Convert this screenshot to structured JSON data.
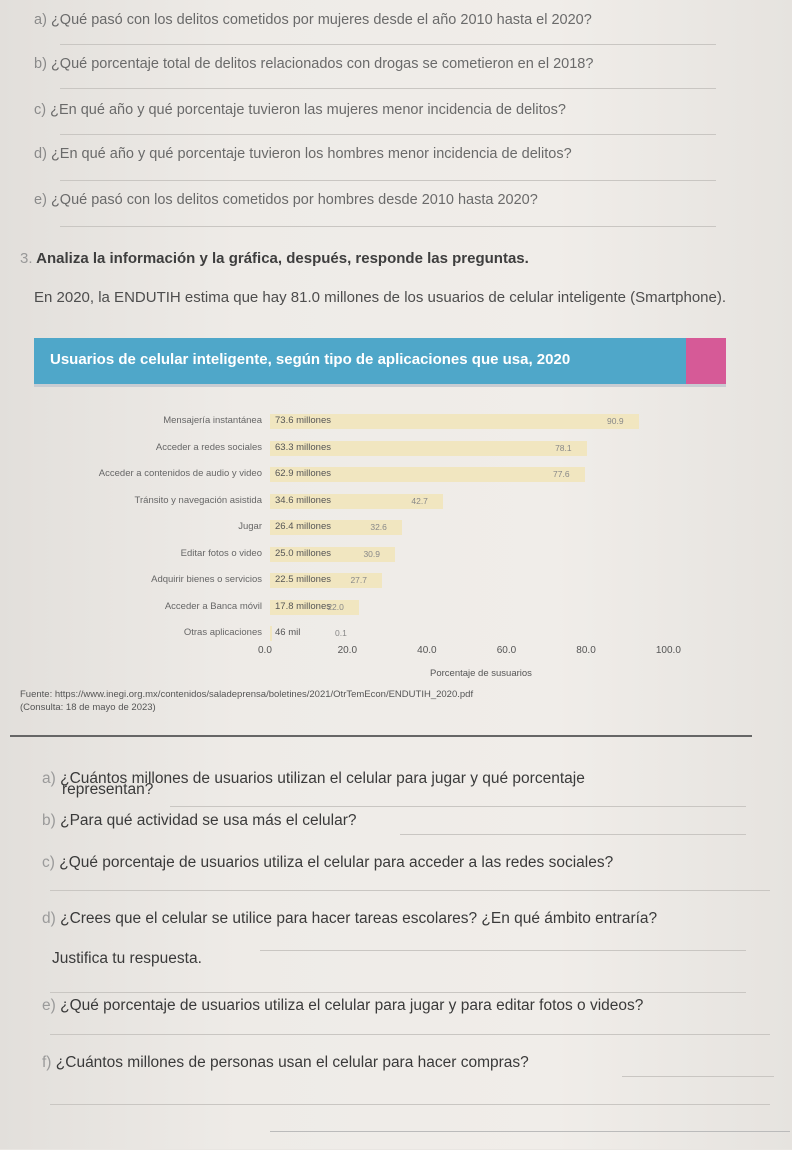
{
  "top_questions": [
    {
      "letter": "a)",
      "text": "¿Qué pasó con los delitos cometidos por mujeres desde el año 2010 hasta el 2020?"
    },
    {
      "letter": "b)",
      "text": "¿Qué porcentaje total de delitos relacionados con drogas se cometieron en el 2018?"
    },
    {
      "letter": "c)",
      "text": "¿En qué año y qué porcentaje tuvieron las mujeres menor incidencia de delitos?"
    },
    {
      "letter": "d)",
      "text": "¿En qué año y qué porcentaje tuvieron los hombres menor incidencia de delitos?"
    },
    {
      "letter": "e)",
      "text": "¿Qué pasó con los delitos cometidos por hombres desde 2010 hasta 2020?"
    }
  ],
  "section": {
    "number": "3.",
    "title": "Analiza la información y la gráfica, después, responde las preguntas."
  },
  "intro": "En 2020, la ENDUTIH estima que hay 81.0 millones de los usuarios de celular inteligente (Smartphone).",
  "banner_title": "Usuarios de celular inteligente, según tipo de aplicaciones que usa, 2020",
  "chart_data": {
    "type": "bar",
    "orientation": "horizontal",
    "categories": [
      "Mensajería instantánea",
      "Acceder a redes sociales",
      "Acceder a contenidos de audio y video",
      "Tránsito y navegación asistida",
      "Jugar",
      "Editar fotos o video",
      "Adquirir bienes o servicios",
      "Acceder a Banca móvil",
      "Otras aplicaciones"
    ],
    "bar_labels": [
      "73.6 millones",
      "63.3 millones",
      "62.9 millones",
      "34.6 millones",
      "26.4 millones",
      "25.0 millones",
      "22.5 millones",
      "17.8 millones",
      "46 mil"
    ],
    "values": [
      90.9,
      78.1,
      77.6,
      42.7,
      32.6,
      30.9,
      27.7,
      22.0,
      0.1
    ],
    "value_labels": [
      "90.9",
      "78.1",
      "77.6",
      "42.7",
      "32.6",
      "30.9",
      "27.7",
      "22.0",
      "0.1"
    ],
    "xlabel": "Porcentaje de susuarios",
    "xticks": [
      "0.0",
      "20.0",
      "40.0",
      "60.0",
      "80.0",
      "100.0"
    ],
    "xlim": [
      0,
      100
    ]
  },
  "source": {
    "line1": "Fuente: https://www.inegi.org.mx/contenidos/saladeprensa/boletines/2021/OtrTemEcon/ENDUTIH_2020.pdf",
    "line2": "(Consulta: 18 de mayo de 2023)"
  },
  "questions": [
    {
      "letter": "a)",
      "text": "¿Cuántos millones de usuarios utilizan el celular para jugar y qué porcentaje"
    },
    {
      "letter": "",
      "text": "representan?"
    },
    {
      "letter": "b)",
      "text": "¿Para qué actividad se usa más el celular?"
    },
    {
      "letter": "c)",
      "text": "¿Qué porcentaje de usuarios utiliza el celular para acceder a las redes sociales?"
    },
    {
      "letter": "d)",
      "text": "¿Crees que el celular se utilice para hacer tareas escolares? ¿En qué ámbito entraría?"
    },
    {
      "letter": "",
      "text": "Justifica tu respuesta."
    },
    {
      "letter": "e)",
      "text": "¿Qué porcentaje de usuarios utiliza el celular para jugar y para editar fotos o videos?"
    },
    {
      "letter": "f)",
      "text": "¿Cuántos millones de personas usan el celular para hacer compras?"
    }
  ]
}
